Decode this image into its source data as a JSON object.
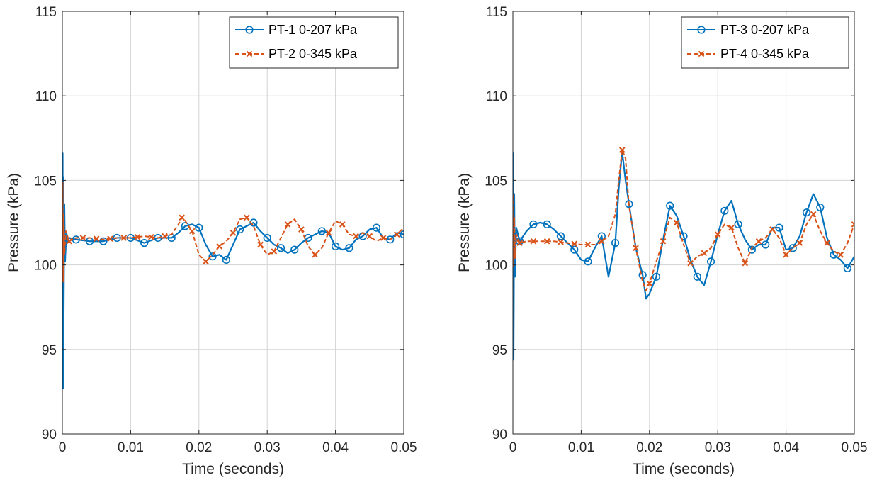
{
  "colors": {
    "series_a": "#0072BD",
    "series_b": "#D95319",
    "grid": "#D3D3D3",
    "axis": "#262626"
  },
  "chart_data": [
    {
      "type": "line",
      "title": "",
      "xlabel": "Time (seconds)",
      "ylabel": "Pressure (kPa)",
      "xlim": [
        0,
        0.05
      ],
      "ylim": [
        90,
        115
      ],
      "xticks": [
        0,
        0.01,
        0.02,
        0.03,
        0.04,
        0.05
      ],
      "xtick_labels": [
        "0",
        "0.01",
        "0.02",
        "0.03",
        "0.04",
        "0.05"
      ],
      "yticks": [
        90,
        95,
        100,
        105,
        110,
        115
      ],
      "ytick_labels": [
        "90",
        "95",
        "100",
        "105",
        "110",
        "115"
      ],
      "grid": true,
      "legend_position": "top-right",
      "series": [
        {
          "name": "PT-1 0-207 kPa",
          "color": "#0072BD",
          "line_style": "solid",
          "marker": "circle",
          "x": [
            0,
            5e-05,
            0.0001,
            0.00015,
            0.0002,
            0.0003,
            0.0004,
            0.0006,
            0.0008,
            0.001,
            0.002,
            0.004,
            0.006,
            0.008,
            0.01,
            0.012,
            0.014,
            0.016,
            0.017,
            0.018,
            0.019,
            0.02,
            0.021,
            0.022,
            0.023,
            0.024,
            0.025,
            0.026,
            0.027,
            0.028,
            0.029,
            0.03,
            0.031,
            0.032,
            0.033,
            0.034,
            0.035,
            0.036,
            0.037,
            0.038,
            0.039,
            0.04,
            0.041,
            0.042,
            0.043,
            0.044,
            0.045,
            0.046,
            0.047,
            0.048,
            0.049,
            0.05
          ],
          "y": [
            101.5,
            106.6,
            92.7,
            105.2,
            97.3,
            103.6,
            100.2,
            101.9,
            101.4,
            101.6,
            101.5,
            101.4,
            101.4,
            101.6,
            101.6,
            101.3,
            101.6,
            101.6,
            101.9,
            102.3,
            102.4,
            102.2,
            101.2,
            100.5,
            100.6,
            100.3,
            101.2,
            102.1,
            102.3,
            102.5,
            102.0,
            101.6,
            101.2,
            101.0,
            100.7,
            100.9,
            101.3,
            101.6,
            101.8,
            102.0,
            101.9,
            101.1,
            100.9,
            101.0,
            101.5,
            101.7,
            102.1,
            102.2,
            101.6,
            101.5,
            101.9,
            101.8
          ],
          "marker_x": [
            0.002,
            0.004,
            0.006,
            0.008,
            0.01,
            0.012,
            0.014,
            0.016,
            0.018,
            0.02,
            0.022,
            0.024,
            0.026,
            0.028,
            0.03,
            0.032,
            0.034,
            0.036,
            0.038,
            0.04,
            0.042,
            0.044,
            0.046,
            0.048,
            0.05
          ]
        },
        {
          "name": "PT-2 0-345 kPa",
          "color": "#D95319",
          "line_style": "dashed",
          "marker": "x",
          "x": [
            0,
            5e-05,
            0.0001,
            0.0002,
            0.0003,
            0.0005,
            0.001,
            0.002,
            0.004,
            0.006,
            0.008,
            0.01,
            0.012,
            0.014,
            0.016,
            0.017,
            0.0175,
            0.018,
            0.019,
            0.02,
            0.021,
            0.022,
            0.023,
            0.024,
            0.025,
            0.026,
            0.027,
            0.028,
            0.029,
            0.03,
            0.031,
            0.032,
            0.033,
            0.034,
            0.035,
            0.036,
            0.037,
            0.038,
            0.039,
            0.04,
            0.041,
            0.042,
            0.043,
            0.044,
            0.045,
            0.046,
            0.047,
            0.048,
            0.049,
            0.05
          ],
          "y": [
            101.5,
            104.9,
            99.0,
            103.0,
            100.6,
            102.0,
            101.4,
            101.6,
            101.6,
            101.5,
            101.6,
            101.6,
            101.7,
            101.6,
            101.8,
            102.4,
            102.8,
            102.6,
            102.0,
            100.6,
            100.2,
            100.6,
            101.1,
            101.4,
            101.9,
            102.7,
            102.8,
            102.3,
            101.2,
            100.6,
            100.8,
            101.6,
            102.4,
            102.7,
            102.1,
            101.1,
            100.6,
            101.0,
            101.9,
            102.6,
            102.4,
            101.8,
            101.7,
            101.9,
            101.7,
            101.4,
            101.6,
            101.5,
            101.8,
            102.2
          ],
          "marker_x": [
            0.001,
            0.003,
            0.005,
            0.007,
            0.009,
            0.011,
            0.013,
            0.015,
            0.0175,
            0.019,
            0.021,
            0.023,
            0.025,
            0.027,
            0.029,
            0.031,
            0.033,
            0.035,
            0.037,
            0.039,
            0.041,
            0.043,
            0.045,
            0.047,
            0.049
          ]
        }
      ]
    },
    {
      "type": "line",
      "title": "",
      "xlabel": "Time (seconds)",
      "ylabel": "Pressure (kPa)",
      "xlim": [
        0,
        0.05
      ],
      "ylim": [
        90,
        115
      ],
      "xticks": [
        0,
        0.01,
        0.02,
        0.03,
        0.04,
        0.05
      ],
      "xtick_labels": [
        "0",
        "0.01",
        "0.02",
        "0.03",
        "0.04",
        "0.05"
      ],
      "yticks": [
        90,
        95,
        100,
        105,
        110,
        115
      ],
      "ytick_labels": [
        "90",
        "95",
        "100",
        "105",
        "110",
        "115"
      ],
      "grid": true,
      "legend_position": "top-right",
      "series": [
        {
          "name": "PT-3 0-207 kPa",
          "color": "#0072BD",
          "line_style": "solid",
          "marker": "circle",
          "x": [
            0,
            5e-05,
            0.0001,
            0.0002,
            0.0003,
            0.0005,
            0.001,
            0.002,
            0.003,
            0.004,
            0.005,
            0.006,
            0.007,
            0.008,
            0.009,
            0.01,
            0.011,
            0.012,
            0.013,
            0.014,
            0.015,
            0.0155,
            0.016,
            0.0165,
            0.017,
            0.018,
            0.019,
            0.0195,
            0.02,
            0.021,
            0.022,
            0.023,
            0.024,
            0.025,
            0.026,
            0.027,
            0.028,
            0.029,
            0.03,
            0.031,
            0.032,
            0.033,
            0.034,
            0.035,
            0.036,
            0.037,
            0.038,
            0.039,
            0.04,
            0.041,
            0.042,
            0.043,
            0.044,
            0.045,
            0.046,
            0.047,
            0.048,
            0.049,
            0.05
          ],
          "y": [
            101.6,
            106.6,
            94.4,
            104.2,
            99.3,
            102.2,
            101.4,
            102.0,
            102.4,
            102.5,
            102.4,
            102.1,
            101.7,
            101.3,
            100.9,
            100.3,
            100.2,
            101.0,
            101.7,
            99.3,
            101.3,
            104.5,
            106.7,
            105.0,
            103.6,
            101.0,
            99.4,
            98.0,
            98.3,
            99.3,
            101.5,
            103.5,
            102.9,
            101.7,
            100.3,
            99.3,
            98.8,
            100.2,
            101.8,
            103.2,
            103.8,
            102.4,
            101.5,
            100.9,
            101.2,
            101.2,
            102.2,
            102.2,
            100.9,
            101.0,
            101.7,
            103.1,
            104.2,
            103.4,
            101.6,
            100.6,
            100.3,
            99.8,
            100.5
          ],
          "marker_x": [
            0.001,
            0.003,
            0.005,
            0.007,
            0.009,
            0.011,
            0.013,
            0.015,
            0.017,
            0.019,
            0.021,
            0.023,
            0.025,
            0.027,
            0.029,
            0.031,
            0.033,
            0.035,
            0.037,
            0.039,
            0.041,
            0.043,
            0.045,
            0.047,
            0.049
          ]
        },
        {
          "name": "PT-4 0-345 kPa",
          "color": "#D95319",
          "line_style": "dashed",
          "marker": "x",
          "x": [
            0,
            5e-05,
            0.0001,
            0.0002,
            0.0003,
            0.0005,
            0.001,
            0.002,
            0.004,
            0.006,
            0.008,
            0.01,
            0.012,
            0.013,
            0.014,
            0.015,
            0.0155,
            0.016,
            0.0165,
            0.017,
            0.018,
            0.019,
            0.0195,
            0.02,
            0.021,
            0.022,
            0.023,
            0.024,
            0.025,
            0.026,
            0.027,
            0.028,
            0.029,
            0.03,
            0.031,
            0.032,
            0.033,
            0.034,
            0.035,
            0.036,
            0.037,
            0.038,
            0.039,
            0.04,
            0.041,
            0.042,
            0.043,
            0.044,
            0.045,
            0.046,
            0.047,
            0.048,
            0.049,
            0.05
          ],
          "y": [
            101.3,
            104.1,
            99.9,
            102.8,
            100.4,
            101.8,
            101.3,
            101.4,
            101.4,
            101.4,
            101.3,
            101.2,
            101.2,
            101.4,
            101.7,
            103.0,
            105.0,
            106.8,
            106.3,
            103.5,
            101.0,
            99.0,
            98.5,
            98.9,
            100.2,
            101.4,
            102.8,
            102.5,
            101.2,
            100.1,
            100.5,
            100.7,
            101.0,
            101.8,
            102.4,
            102.2,
            101.0,
            100.1,
            101.0,
            101.4,
            101.6,
            102.1,
            101.6,
            100.6,
            101.0,
            101.3,
            102.4,
            103.0,
            102.0,
            101.3,
            100.8,
            100.6,
            101.3,
            102.4
          ],
          "marker_x": [
            0.001,
            0.003,
            0.005,
            0.007,
            0.009,
            0.011,
            0.013,
            0.016,
            0.018,
            0.02,
            0.022,
            0.024,
            0.026,
            0.028,
            0.03,
            0.032,
            0.034,
            0.036,
            0.038,
            0.04,
            0.042,
            0.044,
            0.046,
            0.048,
            0.05
          ]
        }
      ]
    }
  ]
}
